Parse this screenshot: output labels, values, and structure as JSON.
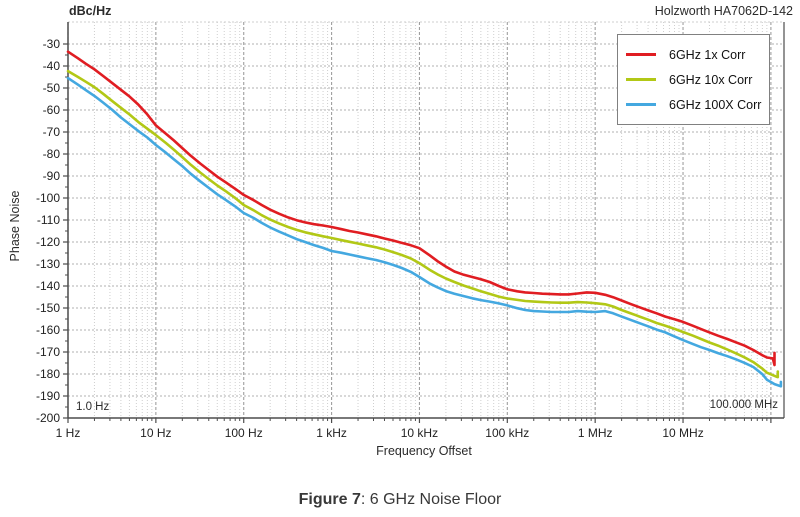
{
  "header": {
    "unit_label": "dBc/Hz",
    "instrument": "Holzworth HA7062D-142"
  },
  "caption": {
    "label": "Figure 7",
    "text": ": 6 GHz Noise Floor"
  },
  "colors": {
    "grid_minor": "#cfcfcf",
    "grid_major": "#9f9f9f",
    "grid_horizontal": "#b0b0b0",
    "spine": "#4d4d4d",
    "tick_text": "#222222",
    "series_red": "#e01d22",
    "series_green": "#b2c816",
    "series_blue": "#44a8e0"
  },
  "chart_data": {
    "type": "line",
    "title": "",
    "xlabel": "Frequency Offset",
    "ylabel": "Phase Noise",
    "y_unit": "dBc/Hz",
    "x_scale": "log",
    "xlim_hz": [
      1,
      141000000
    ],
    "ylim_dbchz": [
      -200,
      -20
    ],
    "grid": true,
    "legend_position": "top-right",
    "annotations": {
      "start": "1.0 Hz",
      "stop": "100.000 MHz"
    },
    "y_ticks": [
      -30,
      -40,
      -50,
      -60,
      -70,
      -80,
      -90,
      -100,
      -110,
      -120,
      -130,
      -140,
      -150,
      -160,
      -170,
      -180,
      -190,
      -200
    ],
    "x_ticks": [
      {
        "f": 1,
        "label": "1 Hz"
      },
      {
        "f": 10,
        "label": "10 Hz"
      },
      {
        "f": 100,
        "label": "100 Hz"
      },
      {
        "f": 1000,
        "label": "1 kHz"
      },
      {
        "f": 10000,
        "label": "10 kHz"
      },
      {
        "f": 100000,
        "label": "100 kHz"
      },
      {
        "f": 1000000,
        "label": "1 MHz"
      },
      {
        "f": 10000000,
        "label": "10 MHz"
      },
      {
        "f": 100000000,
        "label": ""
      }
    ],
    "series": [
      {
        "name": "6GHz 1x Corr",
        "color": "#e01d22",
        "points": [
          [
            1,
            -33.5
          ],
          [
            1.3,
            -36.5
          ],
          [
            1.6,
            -39
          ],
          [
            2,
            -41.5
          ],
          [
            2.5,
            -44.5
          ],
          [
            3.2,
            -47.8
          ],
          [
            4,
            -50.8
          ],
          [
            5,
            -53.8
          ],
          [
            6.3,
            -57.5
          ],
          [
            8,
            -62
          ],
          [
            10,
            -67
          ],
          [
            13,
            -70.8
          ],
          [
            16,
            -73.8
          ],
          [
            20,
            -77.3
          ],
          [
            25,
            -80.8
          ],
          [
            32,
            -84.3
          ],
          [
            40,
            -87.3
          ],
          [
            50,
            -90.3
          ],
          [
            63,
            -93
          ],
          [
            80,
            -95.8
          ],
          [
            100,
            -98.6
          ],
          [
            130,
            -101
          ],
          [
            160,
            -103.2
          ],
          [
            200,
            -105.3
          ],
          [
            250,
            -107.1
          ],
          [
            320,
            -108.8
          ],
          [
            400,
            -110.1
          ],
          [
            500,
            -111.1
          ],
          [
            630,
            -111.9
          ],
          [
            800,
            -112.5
          ],
          [
            1000,
            -113.2
          ],
          [
            1300,
            -114.2
          ],
          [
            1600,
            -115
          ],
          [
            2000,
            -115.7
          ],
          [
            2500,
            -116.5
          ],
          [
            3200,
            -117.4
          ],
          [
            4000,
            -118.4
          ],
          [
            5000,
            -119.3
          ],
          [
            6300,
            -120.4
          ],
          [
            8000,
            -121.5
          ],
          [
            10000,
            -122.8
          ],
          [
            13000,
            -126
          ],
          [
            16000,
            -128.7
          ],
          [
            20000,
            -131.2
          ],
          [
            25000,
            -133.4
          ],
          [
            32000,
            -134.9
          ],
          [
            40000,
            -135.9
          ],
          [
            50000,
            -136.9
          ],
          [
            63000,
            -138.2
          ],
          [
            80000,
            -140
          ],
          [
            100000,
            -141.5
          ],
          [
            130000,
            -142.4
          ],
          [
            160000,
            -142.9
          ],
          [
            200000,
            -143.2
          ],
          [
            250000,
            -143.5
          ],
          [
            320000,
            -143.7
          ],
          [
            400000,
            -143.8
          ],
          [
            500000,
            -143.8
          ],
          [
            630000,
            -143.4
          ],
          [
            800000,
            -142.9
          ],
          [
            1000000,
            -143.1
          ],
          [
            1300000,
            -144
          ],
          [
            1600000,
            -145.1
          ],
          [
            2000000,
            -146.6
          ],
          [
            2500000,
            -148.1
          ],
          [
            3200000,
            -149.7
          ],
          [
            4000000,
            -151.1
          ],
          [
            5000000,
            -152.4
          ],
          [
            6300000,
            -153.9
          ],
          [
            8000000,
            -155.1
          ],
          [
            10000000,
            -156.3
          ],
          [
            13000000,
            -158.1
          ],
          [
            16000000,
            -159.6
          ],
          [
            20000000,
            -161.1
          ],
          [
            25000000,
            -162.6
          ],
          [
            32000000,
            -164.1
          ],
          [
            40000000,
            -165.6
          ],
          [
            50000000,
            -167.1
          ],
          [
            63000000,
            -169.1
          ],
          [
            80000000,
            -171.5
          ],
          [
            90000000,
            -172.5
          ],
          [
            105000000,
            -172.9
          ],
          [
            110000000,
            -175.9
          ],
          [
            110000000,
            -170.4
          ]
        ]
      },
      {
        "name": "6GHz 10x Corr",
        "color": "#b2c816",
        "points": [
          [
            1,
            -42.3
          ],
          [
            1.3,
            -45
          ],
          [
            1.6,
            -47.2
          ],
          [
            2,
            -49.6
          ],
          [
            2.5,
            -52.6
          ],
          [
            3.2,
            -56
          ],
          [
            4,
            -59
          ],
          [
            5,
            -62
          ],
          [
            6.3,
            -65.4
          ],
          [
            8,
            -68.5
          ],
          [
            10,
            -71.4
          ],
          [
            13,
            -75
          ],
          [
            16,
            -78
          ],
          [
            20,
            -81.4
          ],
          [
            25,
            -84.9
          ],
          [
            32,
            -88.4
          ],
          [
            40,
            -91.4
          ],
          [
            50,
            -94.3
          ],
          [
            63,
            -97
          ],
          [
            80,
            -100
          ],
          [
            100,
            -103.2
          ],
          [
            130,
            -105.6
          ],
          [
            160,
            -107.8
          ],
          [
            200,
            -109.8
          ],
          [
            250,
            -111.5
          ],
          [
            320,
            -113.2
          ],
          [
            400,
            -114.5
          ],
          [
            500,
            -115.6
          ],
          [
            630,
            -116.5
          ],
          [
            800,
            -117.4
          ],
          [
            1000,
            -118.2
          ],
          [
            1300,
            -119.2
          ],
          [
            1600,
            -119.9
          ],
          [
            2000,
            -120.7
          ],
          [
            2500,
            -121.5
          ],
          [
            3200,
            -122.4
          ],
          [
            4000,
            -123.4
          ],
          [
            5000,
            -124.6
          ],
          [
            6300,
            -125.9
          ],
          [
            8000,
            -127.5
          ],
          [
            10000,
            -129.6
          ],
          [
            13000,
            -132.6
          ],
          [
            16000,
            -134.7
          ],
          [
            20000,
            -136.6
          ],
          [
            25000,
            -138.2
          ],
          [
            32000,
            -139.8
          ],
          [
            40000,
            -141.1
          ],
          [
            50000,
            -142.4
          ],
          [
            63000,
            -143.6
          ],
          [
            80000,
            -144.8
          ],
          [
            100000,
            -145.7
          ],
          [
            130000,
            -146.3
          ],
          [
            160000,
            -146.8
          ],
          [
            200000,
            -147.1
          ],
          [
            250000,
            -147.3
          ],
          [
            320000,
            -147.5
          ],
          [
            400000,
            -147.6
          ],
          [
            500000,
            -147.6
          ],
          [
            630000,
            -147.3
          ],
          [
            800000,
            -147.5
          ],
          [
            1000000,
            -147.8
          ],
          [
            1300000,
            -148.3
          ],
          [
            1600000,
            -149.3
          ],
          [
            2000000,
            -150.9
          ],
          [
            2500000,
            -152.3
          ],
          [
            3200000,
            -153.9
          ],
          [
            4000000,
            -155.3
          ],
          [
            5000000,
            -156.8
          ],
          [
            6300000,
            -158.1
          ],
          [
            8000000,
            -159.5
          ],
          [
            10000000,
            -160.9
          ],
          [
            13000000,
            -162.6
          ],
          [
            16000000,
            -164.1
          ],
          [
            20000000,
            -165.7
          ],
          [
            25000000,
            -167.1
          ],
          [
            32000000,
            -168.9
          ],
          [
            40000000,
            -170.6
          ],
          [
            50000000,
            -172.4
          ],
          [
            63000000,
            -174.6
          ],
          [
            80000000,
            -177.6
          ],
          [
            90000000,
            -179.4
          ],
          [
            115000000,
            -181.2
          ],
          [
            120000000,
            -181.4
          ],
          [
            120000000,
            -178.9
          ]
        ]
      },
      {
        "name": "6GHz 100X Corr",
        "color": "#44a8e0",
        "points": [
          [
            1,
            -45.5
          ],
          [
            1.3,
            -48.5
          ],
          [
            1.6,
            -51
          ],
          [
            2,
            -53.6
          ],
          [
            2.5,
            -56.6
          ],
          [
            3.2,
            -60
          ],
          [
            4,
            -63.4
          ],
          [
            5,
            -66.4
          ],
          [
            6.3,
            -69.5
          ],
          [
            8,
            -72.5
          ],
          [
            10,
            -75.9
          ],
          [
            13,
            -79.4
          ],
          [
            16,
            -82.4
          ],
          [
            20,
            -85.5
          ],
          [
            25,
            -89
          ],
          [
            32,
            -92.4
          ],
          [
            40,
            -95.4
          ],
          [
            50,
            -98.3
          ],
          [
            63,
            -101
          ],
          [
            80,
            -103.8
          ],
          [
            100,
            -106.8
          ],
          [
            130,
            -109.1
          ],
          [
            160,
            -111.3
          ],
          [
            200,
            -113.4
          ],
          [
            250,
            -115.2
          ],
          [
            320,
            -117
          ],
          [
            400,
            -118.7
          ],
          [
            500,
            -120
          ],
          [
            630,
            -121.4
          ],
          [
            800,
            -122.7
          ],
          [
            1000,
            -124.1
          ],
          [
            1300,
            -124.9
          ],
          [
            1600,
            -125.7
          ],
          [
            2000,
            -126.5
          ],
          [
            2500,
            -127.3
          ],
          [
            3200,
            -128.2
          ],
          [
            4000,
            -129.2
          ],
          [
            5000,
            -130.4
          ],
          [
            6300,
            -131.8
          ],
          [
            8000,
            -133.6
          ],
          [
            10000,
            -135.9
          ],
          [
            13000,
            -138.8
          ],
          [
            16000,
            -140.6
          ],
          [
            20000,
            -142.3
          ],
          [
            25000,
            -143.5
          ],
          [
            32000,
            -144.6
          ],
          [
            40000,
            -145.6
          ],
          [
            50000,
            -146.4
          ],
          [
            63000,
            -147.1
          ],
          [
            80000,
            -147.9
          ],
          [
            100000,
            -148.8
          ],
          [
            130000,
            -150.1
          ],
          [
            160000,
            -150.9
          ],
          [
            200000,
            -151.4
          ],
          [
            250000,
            -151.6
          ],
          [
            320000,
            -151.8
          ],
          [
            400000,
            -151.8
          ],
          [
            500000,
            -151.8
          ],
          [
            630000,
            -151.4
          ],
          [
            800000,
            -151.7
          ],
          [
            1000000,
            -151.8
          ],
          [
            1300000,
            -151.4
          ],
          [
            1600000,
            -152.4
          ],
          [
            2000000,
            -153.9
          ],
          [
            2500000,
            -155.3
          ],
          [
            3200000,
            -156.9
          ],
          [
            4000000,
            -158.3
          ],
          [
            5000000,
            -159.8
          ],
          [
            6300000,
            -161.1
          ],
          [
            8000000,
            -162.9
          ],
          [
            10000000,
            -164.6
          ],
          [
            13000000,
            -166.4
          ],
          [
            16000000,
            -167.8
          ],
          [
            20000000,
            -169.1
          ],
          [
            25000000,
            -170.5
          ],
          [
            32000000,
            -171.9
          ],
          [
            40000000,
            -173.3
          ],
          [
            50000000,
            -174.9
          ],
          [
            63000000,
            -176.8
          ],
          [
            80000000,
            -180.1
          ],
          [
            90000000,
            -182.6
          ],
          [
            110000000,
            -184.6
          ],
          [
            130000000,
            -185.6
          ],
          [
            130000000,
            -183.6
          ]
        ]
      }
    ]
  }
}
